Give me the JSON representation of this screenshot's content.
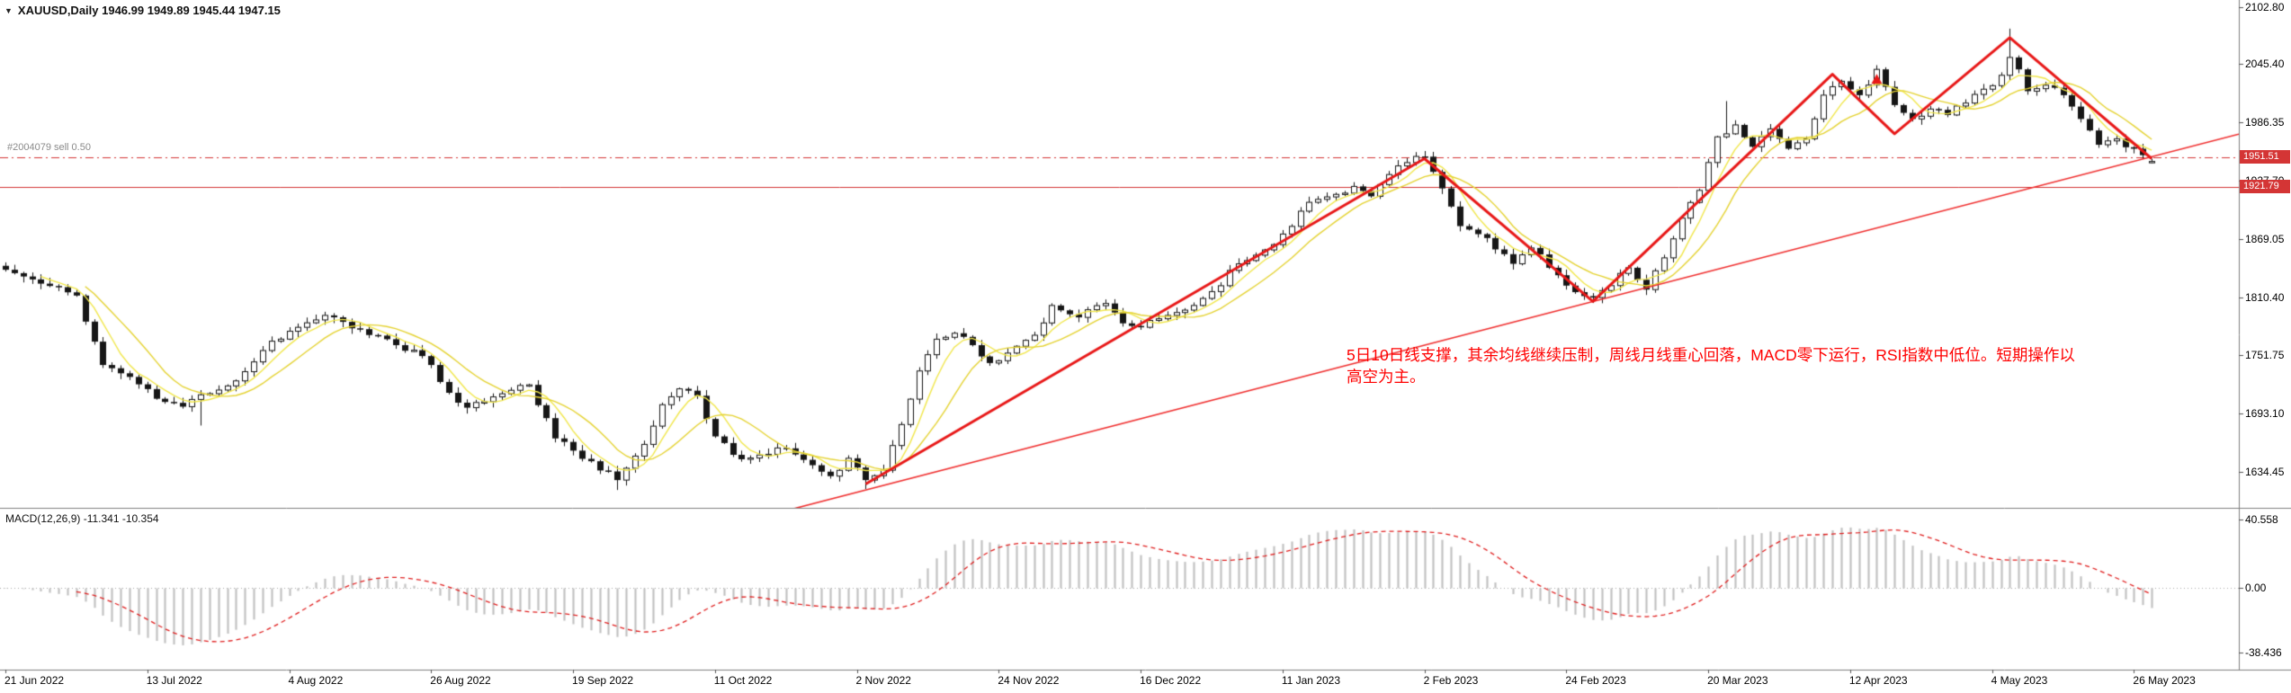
{
  "window": {
    "title": "XAUUSD,Daily 1946.99 1949.89 1945.44 1947.15",
    "symbol": "XAUUSD",
    "period": "Daily",
    "ohlc": {
      "open": "1946.99",
      "high": "1949.89",
      "low": "1945.44",
      "close": "1947.15"
    }
  },
  "order_line": {
    "label": "#2004079 sell 0.50",
    "price": 1951.51
  },
  "price_badges": [
    {
      "value": "1951.51",
      "price": 1951.51,
      "color": "#d43535"
    },
    {
      "value": "1921.79",
      "price": 1921.79,
      "color": "#d43535"
    }
  ],
  "annotation": {
    "line1": "5日10日线支撑，其余均线继续压制，周线月线重心回落，MACD零下运行，RSI指数中低位。短期操作以",
    "line2": "高空为主。",
    "color": "#ff0000"
  },
  "macd_panel": {
    "label": "MACD(12,26,9) -11.341 -10.354",
    "main_value": "-11.341",
    "signal_value": "-10.354"
  },
  "chart_data": {
    "type": "candlestick",
    "symbol": "XAUUSD",
    "timeframe": "Daily",
    "x_axis": {
      "tick_labels": [
        "21 Jun 2022",
        "13 Jul 2022",
        "4 Aug 2022",
        "26 Aug 2022",
        "19 Sep 2022",
        "11 Oct 2022",
        "2 Nov 2022",
        "24 Nov 2022",
        "16 Dec 2022",
        "11 Jan 2023",
        "2 Feb 2023",
        "24 Feb 2023",
        "20 Mar 2023",
        "12 Apr 2023",
        "4 May 2023",
        "26 May 2023"
      ],
      "tick_step": 16
    },
    "y_axis": {
      "tick_labels": [
        "2102.80",
        "2045.40",
        "1986.35",
        "1927.70",
        "1869.05",
        "1810.40",
        "1751.75",
        "1693.10",
        "1634.45"
      ],
      "tick_values": [
        2102.8,
        2045.4,
        1986.35,
        1927.7,
        1869.05,
        1810.4,
        1751.75,
        1693.1,
        1634.45
      ]
    },
    "macd_axis": {
      "tick_labels": [
        "40.558",
        "0.00",
        "-38.436"
      ],
      "tick_values": [
        40.558,
        0,
        -38.436
      ]
    },
    "candle_count": 243,
    "close_anchors": [
      [
        0,
        1838
      ],
      [
        4,
        1824
      ],
      [
        8,
        1812
      ],
      [
        11,
        1742
      ],
      [
        14,
        1730
      ],
      [
        17,
        1708
      ],
      [
        20,
        1700
      ],
      [
        22,
        1712
      ],
      [
        26,
        1726
      ],
      [
        30,
        1766
      ],
      [
        33,
        1780
      ],
      [
        36,
        1792
      ],
      [
        39,
        1779
      ],
      [
        43,
        1768
      ],
      [
        47,
        1751
      ],
      [
        50,
        1714
      ],
      [
        52,
        1699
      ],
      [
        56,
        1713
      ],
      [
        59,
        1722
      ],
      [
        62,
        1668
      ],
      [
        66,
        1645
      ],
      [
        69,
        1626
      ],
      [
        72,
        1662
      ],
      [
        74,
        1702
      ],
      [
        76,
        1718
      ],
      [
        78,
        1711
      ],
      [
        80,
        1670
      ],
      [
        83,
        1647
      ],
      [
        86,
        1652
      ],
      [
        88,
        1658
      ],
      [
        91,
        1641
      ],
      [
        93,
        1630
      ],
      [
        95,
        1648
      ],
      [
        97,
        1626
      ],
      [
        99,
        1636
      ],
      [
        101,
        1682
      ],
      [
        103,
        1736
      ],
      [
        105,
        1768
      ],
      [
        107,
        1774
      ],
      [
        109,
        1762
      ],
      [
        111,
        1744
      ],
      [
        113,
        1754
      ],
      [
        116,
        1772
      ],
      [
        118,
        1802
      ],
      [
        121,
        1790
      ],
      [
        124,
        1804
      ],
      [
        126,
        1784
      ],
      [
        128,
        1780
      ],
      [
        131,
        1792
      ],
      [
        134,
        1802
      ],
      [
        136,
        1816
      ],
      [
        139,
        1844
      ],
      [
        142,
        1858
      ],
      [
        144,
        1874
      ],
      [
        147,
        1906
      ],
      [
        150,
        1914
      ],
      [
        152,
        1922
      ],
      [
        154,
        1912
      ],
      [
        156,
        1934
      ],
      [
        158,
        1946
      ],
      [
        160,
        1952
      ],
      [
        162,
        1920
      ],
      [
        164,
        1882
      ],
      [
        167,
        1870
      ],
      [
        170,
        1844
      ],
      [
        172,
        1860
      ],
      [
        174,
        1840
      ],
      [
        176,
        1822
      ],
      [
        179,
        1810
      ],
      [
        181,
        1822
      ],
      [
        183,
        1840
      ],
      [
        185,
        1818
      ],
      [
        187,
        1850
      ],
      [
        189,
        1890
      ],
      [
        191,
        1918
      ],
      [
        193,
        1972
      ],
      [
        195,
        1984
      ],
      [
        197,
        1962
      ],
      [
        199,
        1980
      ],
      [
        201,
        1960
      ],
      [
        203,
        1970
      ],
      [
        205,
        2014
      ],
      [
        207,
        2028
      ],
      [
        209,
        2014
      ],
      [
        211,
        2040
      ],
      [
        213,
        2004
      ],
      [
        215,
        1990
      ],
      [
        217,
        2000
      ],
      [
        219,
        1994
      ],
      [
        221,
        2006
      ],
      [
        223,
        2020
      ],
      [
        225,
        2034
      ],
      [
        226,
        2052
      ],
      [
        227,
        2040
      ],
      [
        228,
        2018
      ],
      [
        230,
        2024
      ],
      [
        232,
        2014
      ],
      [
        234,
        1990
      ],
      [
        236,
        1964
      ],
      [
        238,
        1970
      ],
      [
        240,
        1960
      ],
      [
        242,
        1947.15
      ]
    ],
    "spikes": [
      {
        "i": 22,
        "low": 1681
      },
      {
        "i": 69,
        "low": 1616
      },
      {
        "i": 97,
        "low": 1617
      },
      {
        "i": 194,
        "high": 2008
      },
      {
        "i": 226,
        "high": 2081
      }
    ],
    "last_candle": {
      "open": 1946.99,
      "high": 1949.89,
      "low": 1945.44,
      "close": 1947.15
    },
    "ma_periods": [
      5,
      10
    ],
    "macd": {
      "fast": 12,
      "slow": 26,
      "signal": 9,
      "last_main": -11.341,
      "last_signal": -10.354
    },
    "horizontal_lines": [
      {
        "price": 1951.51,
        "style": "dashdot",
        "label": "#2004079 sell 0.50"
      },
      {
        "price": 1921.79,
        "style": "solid"
      }
    ],
    "trendline": {
      "points": [
        [
          97,
          1616
        ],
        [
          179,
          1806
        ]
      ],
      "extend_right": true
    },
    "zigzag": {
      "points": [
        [
          97,
          1622
        ],
        [
          160,
          1950
        ],
        [
          179,
          1806
        ],
        [
          206,
          2035
        ],
        [
          213,
          1975
        ],
        [
          226,
          2072
        ],
        [
          242,
          1950
        ]
      ]
    },
    "markers": [
      {
        "index": 211,
        "price": 2030,
        "shape": "triangle-up"
      }
    ],
    "colors": {
      "background": "#ffffff",
      "bull": "#ffffff",
      "bear": "#161616",
      "outline": "#161616",
      "ma5": "#f1e74b",
      "ma10": "#e5d332",
      "trend": "#f03030",
      "zigzag": "#e81818",
      "levels": "#d43535",
      "histogram": "#c2c2c2",
      "signal": "#e02020",
      "frame": "#808080",
      "badge_text": "#ffffff"
    }
  }
}
